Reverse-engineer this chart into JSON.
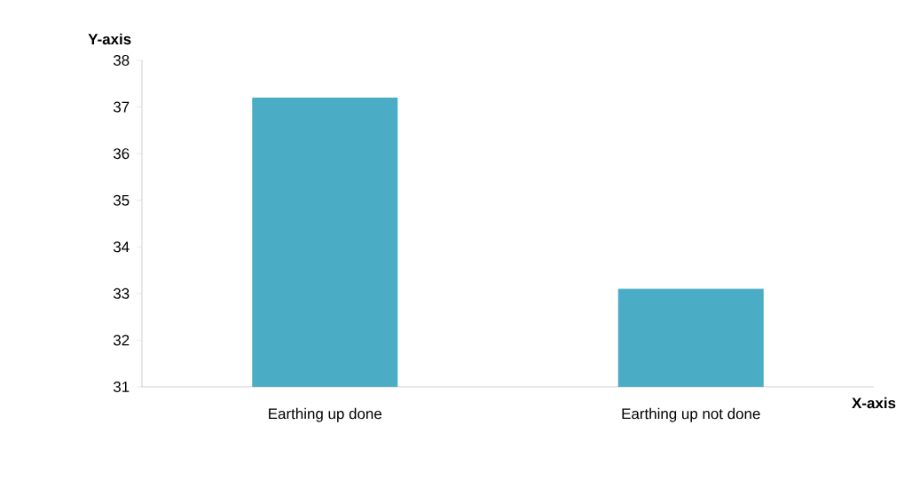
{
  "chart_data": {
    "type": "bar",
    "xlabel": "X-axis",
    "ylabel": "Y-axis",
    "categories": [
      "Earthing up done",
      "Earthing up not done"
    ],
    "values": [
      37.2,
      33.1
    ],
    "color": "#4bacc6",
    "ylim": [
      31,
      38
    ],
    "yticks": [
      31,
      32,
      33,
      34,
      35,
      36,
      37,
      38
    ]
  }
}
